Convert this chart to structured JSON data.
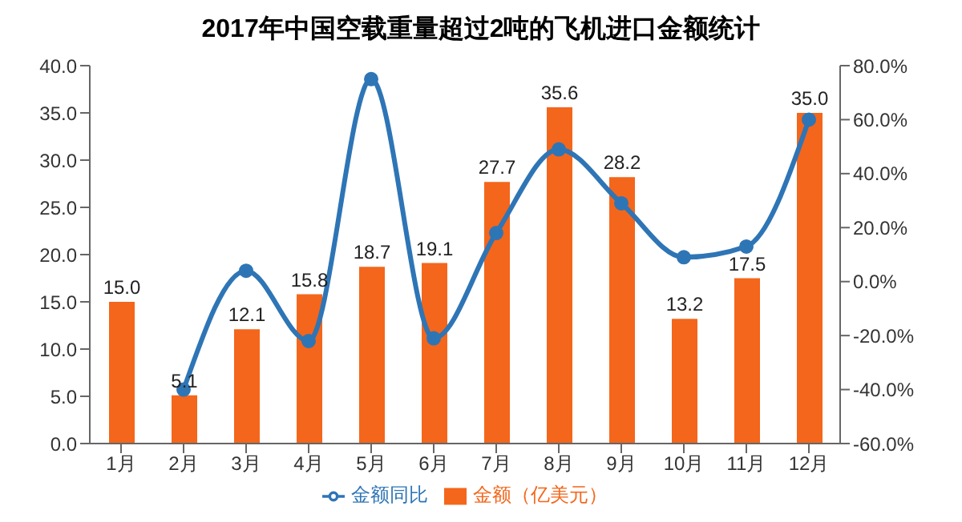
{
  "chart_data": {
    "type": "bar",
    "title": "2017年中国空载重量超过2吨的飞机进口金额统计",
    "categories": [
      "1月",
      "2月",
      "3月",
      "4月",
      "5月",
      "6月",
      "7月",
      "8月",
      "9月",
      "10月",
      "11月",
      "12月"
    ],
    "series": [
      {
        "name": "金额（亿美元）",
        "color": "#f4661b",
        "values": [
          15.0,
          5.1,
          12.1,
          15.8,
          18.7,
          19.1,
          27.7,
          35.6,
          28.2,
          13.2,
          17.5,
          35.0
        ],
        "value_labels": [
          "15.0",
          "5.1",
          "12.1",
          "15.8",
          "18.7",
          "19.1",
          "27.7",
          "35.6",
          "28.2",
          "13.2",
          "17.5",
          "35.0"
        ]
      },
      {
        "name": "金额同比",
        "type": "line",
        "axis": "y2",
        "color": "#2e75b6",
        "marker": "circle",
        "values": [
          null,
          -40,
          4,
          -22,
          75,
          -21,
          18,
          49,
          29,
          9,
          13,
          60
        ]
      }
    ],
    "ylim": [
      0,
      40
    ],
    "yticks": [
      {
        "value": 0,
        "label": "0.0"
      },
      {
        "value": 5,
        "label": "5.0"
      },
      {
        "value": 10,
        "label": "10.0"
      },
      {
        "value": 15,
        "label": "15.0"
      },
      {
        "value": 20,
        "label": "20.0"
      },
      {
        "value": 25,
        "label": "25.0"
      },
      {
        "value": 30,
        "label": "30.0"
      },
      {
        "value": 35,
        "label": "35.0"
      },
      {
        "value": 40,
        "label": "40.0"
      }
    ],
    "y2lim": [
      -60,
      80
    ],
    "y2ticks": [
      {
        "value": -60,
        "label": "-60.0%"
      },
      {
        "value": -40,
        "label": "-40.0%"
      },
      {
        "value": -20,
        "label": "-20.0%"
      },
      {
        "value": 0,
        "label": "0.0%"
      },
      {
        "value": 20,
        "label": "20.0%"
      },
      {
        "value": 40,
        "label": "40.0%"
      },
      {
        "value": 60,
        "label": "60.0%"
      },
      {
        "value": 80,
        "label": "80.0%"
      }
    ],
    "grid": false,
    "legend": "bottom"
  }
}
